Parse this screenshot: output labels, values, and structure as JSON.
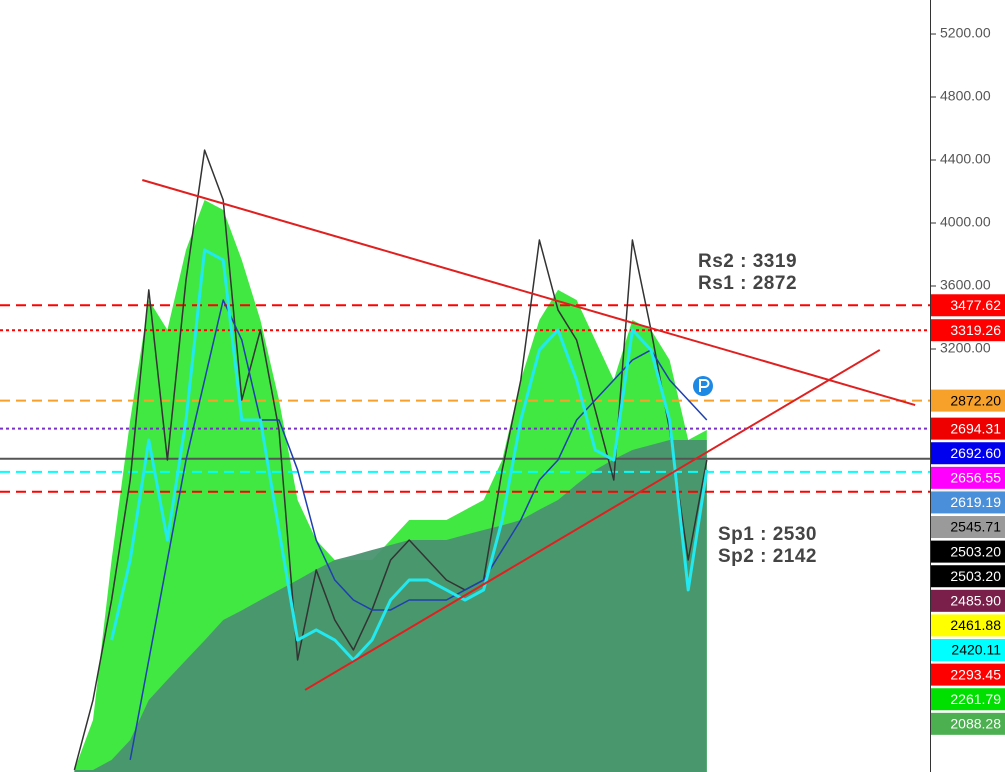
{
  "chart_data": {
    "type": "line",
    "xlim": [
      0,
      100
    ],
    "ylim": [
      514,
      5416
    ],
    "yticks": [
      {
        "value": 5200,
        "label": "5200.00"
      },
      {
        "value": 4800,
        "label": "4800.00"
      },
      {
        "value": 4400,
        "label": "4400.00"
      },
      {
        "value": 4000,
        "label": "4000.00"
      },
      {
        "value": 3600,
        "label": "3600.00"
      },
      {
        "value": 3200,
        "label": "3200.00"
      }
    ],
    "x": [
      8,
      10,
      12,
      14,
      16,
      18,
      20,
      22,
      24,
      26,
      28,
      30,
      32,
      34,
      36,
      38,
      40,
      42,
      44,
      46,
      48,
      50,
      52,
      54,
      56,
      58,
      60,
      62,
      64,
      66,
      68,
      70,
      72,
      74,
      76
    ],
    "areas": [
      {
        "color": "#2ee62e",
        "values": [
          527,
          844,
          1860,
          2749,
          3511,
          3321,
          3829,
          4146,
          4083,
          3765,
          3384,
          2876,
          2241,
          1987,
          1860,
          1860,
          1860,
          1987,
          2114,
          2114,
          2114,
          2178,
          2241,
          2495,
          3003,
          3384,
          3575,
          3511,
          3257,
          3003,
          3384,
          3321,
          3130,
          2622,
          2686
        ]
      },
      {
        "color": "#4a9470",
        "values": [
          527,
          527,
          591,
          717,
          971,
          1100,
          1225,
          1350,
          1479,
          1540,
          1606,
          1670,
          1733,
          1800,
          1860,
          1890,
          1924,
          1955,
          1987,
          1987,
          1987,
          2020,
          2051,
          2080,
          2114,
          2180,
          2241,
          2340,
          2432,
          2500,
          2559,
          2590,
          2622,
          2622,
          2622
        ]
      }
    ],
    "series": [
      {
        "color": "#333333",
        "width": 1.5,
        "values": [
          527,
          971,
          1606,
          2368,
          3575,
          2495,
          3638,
          4463,
          4146,
          2876,
          3321,
          2686,
          1225,
          1797,
          1479,
          1289,
          1543,
          1860,
          1987,
          1860,
          1733,
          1670,
          1733,
          2432,
          3003,
          3892,
          3448,
          3257,
          2813,
          2368,
          3892,
          3321,
          2686,
          1860,
          2495
        ]
      },
      {
        "color": "#1f3fb0",
        "width": 1.5,
        "values": [
          null,
          null,
          null,
          591,
          1225,
          1860,
          2495,
          3003,
          3511,
          3257,
          2749,
          2749,
          2432,
          1987,
          1733,
          1606,
          1543,
          1543,
          1606,
          1606,
          1606,
          1670,
          1733,
          1924,
          2114,
          2368,
          2495,
          2749,
          2876,
          3003,
          3130,
          3194,
          3003,
          2876,
          2749
        ]
      },
      {
        "color": "#22e8f0",
        "width": 3,
        "values": [
          null,
          null,
          1352,
          1860,
          2622,
          1987,
          2749,
          3829,
          3765,
          2749,
          2749,
          2051,
          1352,
          1416,
          1352,
          1225,
          1352,
          1606,
          1733,
          1733,
          1670,
          1606,
          1670,
          2114,
          2749,
          3194,
          3321,
          3003,
          2559,
          2495,
          3321,
          3194,
          2749,
          1670,
          2432
        ]
      }
    ],
    "trendlines": [
      {
        "color": "#e02020",
        "x": [
          15.3,
          98.4
        ],
        "y": [
          4273,
          2844
        ]
      },
      {
        "color": "#e02020",
        "x": [
          32.8,
          94.6
        ],
        "y": [
          1035,
          3194
        ]
      }
    ],
    "price_tags": [
      {
        "value": 3477.62,
        "color": "#ff0000",
        "line": "dashed"
      },
      {
        "value": 3319.26,
        "color": "#ff0000",
        "line": "dotted"
      },
      {
        "value": 2872.2,
        "label": "2872.20",
        "color": "#f7a12b",
        "line": "dashed",
        "line_color": "#f7a12b"
      },
      {
        "value": 2694.31,
        "color": "#ee0000",
        "line": "dotted",
        "line_color": "#7b2fc9"
      },
      {
        "value": 2692.6,
        "label": "2692.60",
        "color": "#0000ee"
      },
      {
        "value": 2656.55,
        "color": "#ff00ff"
      },
      {
        "value": 2619.19,
        "color": "#4a8fd9"
      },
      {
        "value": 2545.71,
        "color": "#9a9a9a"
      },
      {
        "value": 2503.2,
        "label": "2503.20",
        "color": "#000000",
        "line": "solid",
        "line_color": "#555555"
      },
      {
        "value": 2503.2,
        "label": "2503.20",
        "color": "#000000"
      },
      {
        "value": 2485.9,
        "label": "2485.90",
        "color": "#7a1f4a"
      },
      {
        "value": 2461.88,
        "color": "#ffff00"
      },
      {
        "value": 2420.11,
        "color": "#00ffff",
        "line": "dashed"
      },
      {
        "value": 2293.45,
        "color": "#ff0000",
        "line": "dashed"
      },
      {
        "value": 2261.79,
        "color": "#00e000"
      },
      {
        "value": 2088.28,
        "color": "#4caf50"
      }
    ],
    "annotations": [
      "Rs2 : 3319",
      "Rs1 : 2872",
      "Sp1 : 2530",
      "Sp2 : 2142"
    ]
  }
}
